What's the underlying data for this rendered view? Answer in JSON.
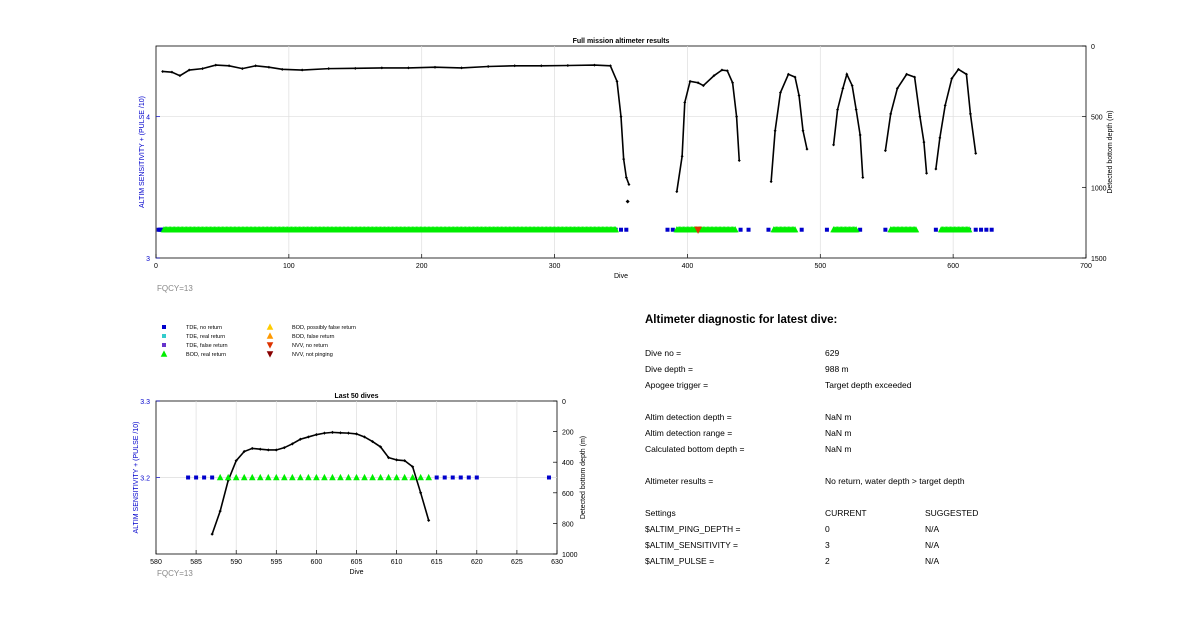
{
  "colors": {
    "axis_left": "#0000cc",
    "series": "#000000",
    "tde_no_return": "#0000cc",
    "tde_real_return": "#33cccc",
    "tde_false_return": "#6633cc",
    "bod_real_return": "#00ee00",
    "bod_possibly_false_return": "#ffcc00",
    "bod_false_return": "#ff9900",
    "nvv_no_return": "#dd3300",
    "nvv_not_pinging": "#880000",
    "grid": "#dddddd",
    "fqcy_text": "#888888"
  },
  "fqcy_label": "FQCY=13",
  "legend": [
    {
      "label": "TDE, no return",
      "marker": "square",
      "color": "#0000cc"
    },
    {
      "label": "TDE, real return",
      "marker": "square",
      "color": "#33cccc"
    },
    {
      "label": "TDE, false return",
      "marker": "square",
      "color": "#6633cc"
    },
    {
      "label": "BOD, real return",
      "marker": "triangle-up",
      "color": "#00ee00"
    },
    {
      "label": "BOD, possibly false return",
      "marker": "triangle-up",
      "color": "#ffcc00"
    },
    {
      "label": "BOD, false return",
      "marker": "triangle-up",
      "color": "#ff9900"
    },
    {
      "label": "NVV, no return",
      "marker": "triangle-down",
      "color": "#dd3300"
    },
    {
      "label": "NVV, not pinging",
      "marker": "triangle-down",
      "color": "#880000"
    }
  ],
  "chart_data": [
    {
      "type": "line",
      "title": "Full mission altimeter results",
      "xlabel": "Dive",
      "ylabel_left": "ALTIM SENSITIVITY + (PULSE /10)",
      "ylabel_right": "Detected bottom depth (m)",
      "xlim": [
        0,
        700
      ],
      "xticks": [
        0,
        100,
        200,
        300,
        400,
        500,
        600,
        700
      ],
      "ylim_left": [
        3,
        4.5
      ],
      "yticks_left": [
        3,
        4
      ],
      "ylim_right": [
        1500,
        0
      ],
      "yticks_right": [
        0,
        500,
        1000,
        1500
      ],
      "grid": true,
      "depth_segments": [
        [
          [
            5,
            180
          ],
          [
            12,
            185
          ],
          [
            18,
            210
          ],
          [
            25,
            170
          ],
          [
            35,
            160
          ],
          [
            45,
            135
          ],
          [
            55,
            140
          ],
          [
            65,
            160
          ],
          [
            75,
            140
          ],
          [
            85,
            150
          ],
          [
            95,
            165
          ],
          [
            110,
            170
          ],
          [
            130,
            160
          ],
          [
            150,
            158
          ],
          [
            170,
            155
          ],
          [
            190,
            155
          ],
          [
            210,
            150
          ],
          [
            230,
            155
          ],
          [
            250,
            145
          ],
          [
            270,
            140
          ],
          [
            290,
            140
          ],
          [
            310,
            138
          ],
          [
            330,
            135
          ],
          [
            342,
            140
          ],
          [
            347,
            250
          ],
          [
            350,
            500
          ],
          [
            352,
            800
          ],
          [
            354,
            930
          ],
          [
            356,
            980
          ]
        ],
        [
          [
            392,
            1030
          ],
          [
            396,
            780
          ],
          [
            398,
            400
          ],
          [
            402,
            250
          ],
          [
            408,
            260
          ],
          [
            412,
            280
          ],
          [
            420,
            210
          ],
          [
            426,
            170
          ],
          [
            430,
            175
          ],
          [
            434,
            260
          ],
          [
            437,
            500
          ],
          [
            439,
            810
          ]
        ],
        [
          [
            463,
            960
          ],
          [
            466,
            600
          ],
          [
            470,
            330
          ],
          [
            476,
            200
          ],
          [
            481,
            220
          ],
          [
            484,
            350
          ],
          [
            487,
            600
          ],
          [
            490,
            730
          ]
        ],
        [
          [
            510,
            700
          ],
          [
            513,
            450
          ],
          [
            517,
            300
          ],
          [
            520,
            200
          ],
          [
            524,
            280
          ],
          [
            527,
            450
          ],
          [
            530,
            630
          ],
          [
            532,
            930
          ]
        ],
        [
          [
            549,
            740
          ],
          [
            553,
            480
          ],
          [
            558,
            300
          ],
          [
            565,
            200
          ],
          [
            571,
            220
          ],
          [
            575,
            500
          ],
          [
            578,
            680
          ],
          [
            580,
            900
          ]
        ],
        [
          [
            587,
            870
          ],
          [
            590,
            650
          ],
          [
            594,
            420
          ],
          [
            599,
            230
          ],
          [
            604,
            165
          ],
          [
            610,
            200
          ],
          [
            613,
            480
          ],
          [
            617,
            760
          ]
        ]
      ],
      "isolated_points": [
        [
          355,
          1100
        ]
      ],
      "tde_no_return_dives": [
        2,
        3,
        4,
        5,
        6,
        7,
        8,
        346,
        350,
        354,
        385,
        389,
        425,
        430,
        435,
        440,
        446,
        461,
        480,
        486,
        505,
        520,
        530,
        549,
        565,
        587,
        592,
        600,
        612,
        617,
        621,
        625,
        629
      ],
      "bod_real_return_ranges": [
        [
          6,
          346
        ],
        [
          392,
          436
        ],
        [
          465,
          481
        ],
        [
          510,
          527
        ],
        [
          553,
          572
        ],
        [
          591,
          612
        ]
      ],
      "nvv_no_return_dives": [
        408
      ]
    },
    {
      "type": "line",
      "title": "Last 50 dives",
      "xlabel": "Dive",
      "ylabel_left": "ALTIM SENSITIVITY + (PULSE /10)",
      "ylabel_right": "Detected bottom depth (m)",
      "xlim": [
        580,
        630
      ],
      "xticks": [
        580,
        585,
        590,
        595,
        600,
        605,
        610,
        615,
        620,
        625,
        630
      ],
      "ylim_left": [
        3.1,
        3.3
      ],
      "yticks_left": [
        3.2,
        3.3
      ],
      "ylim_right": [
        1000,
        0
      ],
      "yticks_right": [
        0,
        200,
        400,
        600,
        800,
        1000
      ],
      "grid": true,
      "depth_points": [
        [
          587,
          870
        ],
        [
          588,
          720
        ],
        [
          589,
          520
        ],
        [
          590,
          390
        ],
        [
          591,
          330
        ],
        [
          592,
          310
        ],
        [
          593,
          315
        ],
        [
          594,
          320
        ],
        [
          595,
          320
        ],
        [
          596,
          305
        ],
        [
          597,
          280
        ],
        [
          598,
          250
        ],
        [
          599,
          235
        ],
        [
          600,
          220
        ],
        [
          601,
          210
        ],
        [
          602,
          205
        ],
        [
          603,
          208
        ],
        [
          604,
          210
        ],
        [
          605,
          215
        ],
        [
          606,
          235
        ],
        [
          607,
          265
        ],
        [
          608,
          300
        ],
        [
          609,
          370
        ],
        [
          610,
          385
        ],
        [
          611,
          390
        ],
        [
          612,
          430
        ],
        [
          613,
          600
        ],
        [
          614,
          780
        ]
      ],
      "tde_no_return_dives": [
        584,
        585,
        586,
        587,
        615,
        616,
        617,
        618,
        619,
        620,
        629
      ],
      "bod_real_return_dives": [
        588,
        589,
        590,
        591,
        592,
        593,
        594,
        595,
        596,
        597,
        598,
        599,
        600,
        601,
        602,
        603,
        604,
        605,
        606,
        607,
        608,
        609,
        610,
        611,
        612,
        613,
        614
      ]
    }
  ],
  "diagnostic": {
    "title": "Altimeter diagnostic for latest dive:",
    "rows": [
      {
        "label": "Dive no =",
        "value": "629"
      },
      {
        "label": "Dive depth =",
        "value": "988 m"
      },
      {
        "label": "Apogee trigger =",
        "value": "Target depth exceeded"
      },
      {
        "label": "Altim detection depth =",
        "value": "NaN m"
      },
      {
        "label": "Altim detection range =",
        "value": "NaN m"
      },
      {
        "label": "Calculated bottom depth =",
        "value": "NaN m"
      },
      {
        "label": "Altimeter results =",
        "value": "No return, water depth > target depth"
      }
    ],
    "settings": {
      "header_label": "Settings",
      "header_current": "CURRENT",
      "header_suggested": "SUGGESTED",
      "rows": [
        {
          "label": "$ALTIM_PING_DEPTH =",
          "current": "0",
          "suggested": "N/A"
        },
        {
          "label": "$ALTIM_SENSITIVITY =",
          "current": "3",
          "suggested": "N/A"
        },
        {
          "label": "$ALTIM_PULSE =",
          "current": "2",
          "suggested": "N/A"
        }
      ]
    }
  }
}
